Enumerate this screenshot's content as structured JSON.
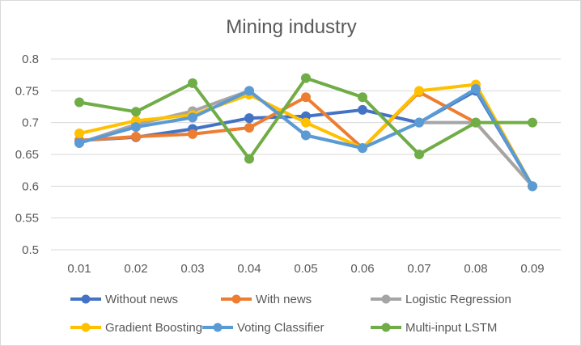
{
  "chart_data": {
    "type": "line",
    "title": "Mining industry",
    "xlabel": "",
    "ylabel": "",
    "categories": [
      "0.01",
      "0.02",
      "0.03",
      "0.04",
      "0.05",
      "0.06",
      "0.07",
      "0.08",
      "0.09"
    ],
    "ylim": [
      0.5,
      0.8
    ],
    "yticks": [
      "0.5",
      "0.55",
      "0.6",
      "0.65",
      "0.7",
      "0.75",
      "0.8"
    ],
    "grid": true,
    "legend_position": "bottom",
    "series": [
      {
        "name": "Without news",
        "color": "#4472c4",
        "values": [
          0.672,
          0.677,
          0.69,
          0.707,
          0.71,
          0.72,
          0.7,
          0.75,
          0.6
        ]
      },
      {
        "name": "With news",
        "color": "#ed7d31",
        "values": [
          0.672,
          0.678,
          0.682,
          0.692,
          0.74,
          0.66,
          0.748,
          0.7,
          0.6
        ]
      },
      {
        "name": "Logistic Regression",
        "color": "#a5a5a5",
        "values": [
          0.668,
          0.697,
          0.718,
          0.75,
          0.68,
          0.66,
          0.7,
          0.7,
          0.6
        ]
      },
      {
        "name": "Gradient Boosting",
        "color": "#ffc000",
        "values": [
          0.683,
          0.703,
          0.712,
          0.744,
          0.7,
          0.66,
          0.75,
          0.76,
          0.6
        ]
      },
      {
        "name": "Voting Classifier",
        "color": "#5b9bd5",
        "values": [
          0.668,
          0.693,
          0.708,
          0.75,
          0.68,
          0.66,
          0.7,
          0.753,
          0.6
        ]
      },
      {
        "name": "Multi-input LSTM",
        "color": "#70ad47",
        "values": [
          0.732,
          0.717,
          0.762,
          0.643,
          0.77,
          0.74,
          0.65,
          0.7,
          0.7
        ]
      }
    ]
  }
}
